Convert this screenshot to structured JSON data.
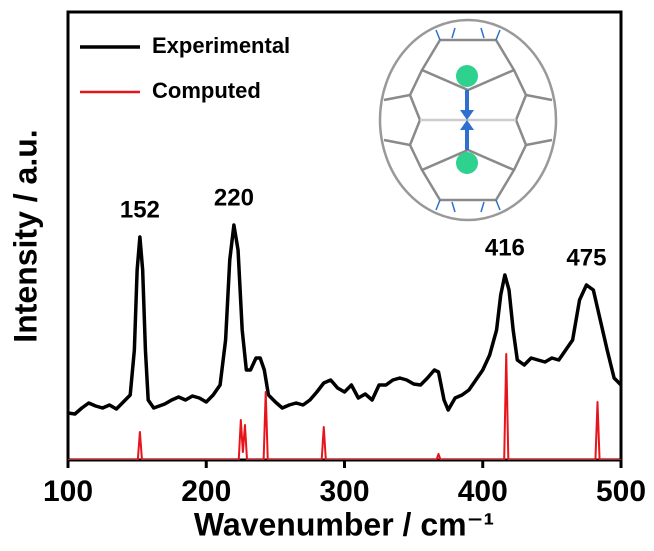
{
  "chart_data": {
    "type": "line",
    "xlabel": "Wavenumber / cm⁻¹",
    "ylabel": "Intensity / a.u.",
    "xlim": [
      100,
      500
    ],
    "xticks": [
      100,
      200,
      300,
      400,
      500
    ],
    "ylim": [
      0,
      448
    ],
    "legend": "upper left",
    "series": [
      {
        "name": "Experimental",
        "color": "#000000",
        "x": [
          100,
          105,
          110,
          115,
          120,
          125,
          130,
          135,
          140,
          145,
          148,
          150,
          152,
          154,
          156,
          158,
          162,
          170,
          175,
          180,
          185,
          190,
          195,
          200,
          205,
          210,
          214,
          217,
          220,
          223,
          226,
          229,
          232,
          236,
          239,
          242,
          245,
          250,
          255,
          260,
          265,
          270,
          275,
          280,
          285,
          290,
          295,
          300,
          305,
          310,
          315,
          320,
          325,
          330,
          335,
          340,
          345,
          350,
          355,
          360,
          365,
          368,
          372,
          375,
          380,
          385,
          390,
          395,
          400,
          405,
          410,
          413,
          416,
          419,
          422,
          425,
          430,
          435,
          440,
          445,
          450,
          455,
          460,
          465,
          470,
          475,
          480,
          485,
          490,
          495,
          500
        ],
        "values": [
          47,
          46,
          52,
          57,
          54,
          52,
          55,
          51,
          58,
          65,
          110,
          190,
          223,
          190,
          110,
          60,
          52,
          56,
          60,
          63,
          60,
          64,
          62,
          58,
          65,
          75,
          120,
          200,
          235,
          210,
          130,
          90,
          90,
          102,
          102,
          90,
          65,
          58,
          52,
          55,
          57,
          55,
          60,
          68,
          77,
          80,
          72,
          68,
          75,
          62,
          66,
          60,
          75,
          75,
          80,
          82,
          80,
          76,
          75,
          82,
          90,
          88,
          60,
          50,
          62,
          65,
          70,
          80,
          90,
          105,
          130,
          165,
          185,
          170,
          130,
          100,
          95,
          102,
          100,
          98,
          102,
          100,
          110,
          120,
          160,
          175,
          170,
          140,
          110,
          82,
          75
        ]
      },
      {
        "name": "Computed",
        "color": "#e8141c",
        "x": [
          100,
          150.5,
          152,
          153.5,
          223.5,
          225,
          226.5,
          228,
          229.5,
          241.5,
          243,
          244.5,
          283.5,
          285,
          286.5,
          366.5,
          368,
          369.5,
          415.5,
          417,
          418.5,
          481.5,
          483,
          484.5,
          500
        ],
        "values": [
          0,
          0,
          28,
          0,
          0,
          40,
          8,
          35,
          0,
          0,
          68,
          0,
          0,
          33,
          0,
          0,
          6,
          0,
          0,
          106,
          0,
          0,
          58,
          0,
          0
        ]
      }
    ],
    "annotations": [
      {
        "text": "152",
        "x": 152
      },
      {
        "text": "220",
        "x": 220
      },
      {
        "text": "416",
        "x": 416
      },
      {
        "text": "475",
        "x": 475
      }
    ]
  }
}
